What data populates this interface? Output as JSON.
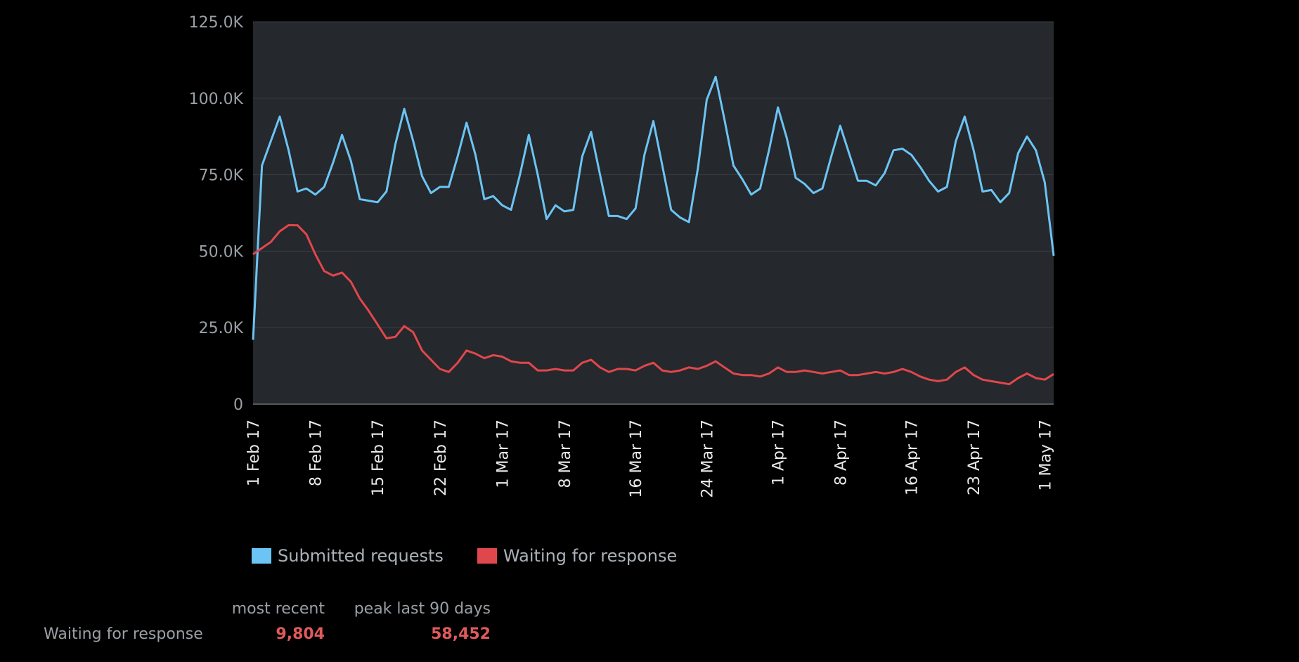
{
  "chart_data": {
    "type": "line",
    "title": "",
    "xlabel": "",
    "ylabel": "",
    "ylim": [
      0,
      125000
    ],
    "y_ticks": [
      "0",
      "25.0K",
      "50.0K",
      "75.0K",
      "100.0K",
      "125.0K"
    ],
    "y_tick_values": [
      0,
      25000,
      50000,
      75000,
      100000,
      125000
    ],
    "x_range_days": [
      0,
      90
    ],
    "x_tick_labels": [
      "1 Feb 17",
      "8 Feb 17",
      "15 Feb 17",
      "22 Feb 17",
      "1 Mar 17",
      "8 Mar 17",
      "16 Mar 17",
      "24 Mar 17",
      "1 Apr 17",
      "8 Apr 17",
      "16 Apr 17",
      "23 Apr 17",
      "1 May 17"
    ],
    "x_tick_days": [
      0,
      7,
      14,
      21,
      28,
      35,
      43,
      51,
      59,
      66,
      74,
      81,
      89
    ],
    "grid": true,
    "series": [
      {
        "name": "Submitted requests",
        "color": "#6cc4f4",
        "values": [
          21000,
          78000,
          86000,
          94000,
          83000,
          69500,
          70500,
          68500,
          71000,
          79000,
          88000,
          79500,
          67000,
          66500,
          66000,
          69500,
          85000,
          96500,
          86000,
          74500,
          69000,
          71000,
          71000,
          81000,
          92000,
          81500,
          67000,
          68000,
          65000,
          63500,
          75000,
          88000,
          75000,
          60500,
          65000,
          63000,
          63500,
          81000,
          89000,
          75000,
          61500,
          61500,
          60500,
          64000,
          81500,
          92500,
          78000,
          63500,
          61000,
          59500,
          77000,
          99500,
          107000,
          93000,
          78000,
          73500,
          68500,
          70500,
          83000,
          97000,
          87000,
          74000,
          72000,
          69000,
          70500,
          81000,
          91000,
          82000,
          73000,
          73000,
          71500,
          75500,
          83000,
          83500,
          81500,
          77500,
          73000,
          69500,
          71000,
          86000,
          94000,
          83000,
          69500,
          70000,
          66000,
          69000,
          82000,
          87500,
          83000,
          72500,
          48500
        ]
      },
      {
        "name": "Waiting for response",
        "color": "#e0474c",
        "values": [
          49000,
          51000,
          53000,
          56500,
          58500,
          58452,
          55500,
          49000,
          43500,
          42000,
          43000,
          40000,
          34500,
          30500,
          26000,
          21500,
          22000,
          25500,
          23500,
          17500,
          14500,
          11500,
          10500,
          13500,
          17500,
          16500,
          15000,
          16000,
          15500,
          14000,
          13500,
          13500,
          11000,
          11000,
          11500,
          11000,
          11000,
          13500,
          14500,
          12000,
          10500,
          11500,
          11500,
          11000,
          12500,
          13500,
          11000,
          10500,
          11000,
          12000,
          11500,
          12500,
          14000,
          12000,
          10000,
          9500,
          9500,
          9000,
          10000,
          12000,
          10500,
          10500,
          11000,
          10500,
          10000,
          10500,
          11000,
          9500,
          9500,
          10000,
          10500,
          10000,
          10500,
          11500,
          10500,
          9000,
          8000,
          7500,
          8000,
          10500,
          12000,
          9500,
          8000,
          7500,
          7000,
          6500,
          8500,
          10000,
          8500,
          8000,
          9804
        ]
      }
    ]
  },
  "legend": {
    "items": [
      {
        "label": "Submitted requests",
        "color": "#6cc4f4"
      },
      {
        "label": "Waiting for response",
        "color": "#e0474c"
      }
    ]
  },
  "stats": {
    "header_recent": "most recent",
    "header_peak": "peak last 90 days",
    "row_label": "Waiting for response",
    "recent_value": "9,804",
    "peak_value": "58,452"
  }
}
